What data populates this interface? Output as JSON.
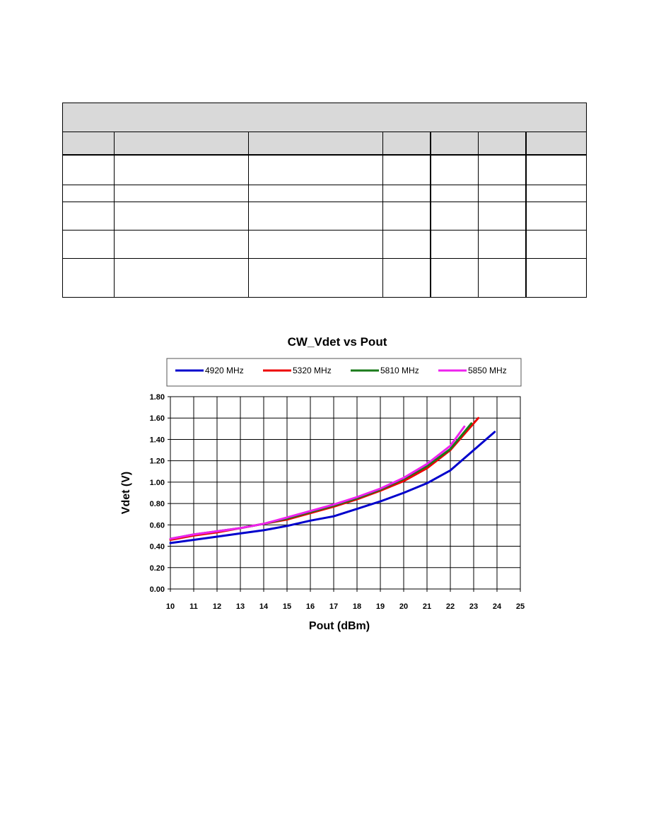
{
  "colors": {
    "table_header_fill": "#d9d9d9",
    "series_4920": "#0000cc",
    "series_5320": "#ee0000",
    "series_5810": "#1a7a1a",
    "series_5850": "#ee22ee"
  },
  "chart_data": {
    "type": "line",
    "title": "CW_Vdet vs Pout",
    "xlabel": "Pout (dBm)",
    "ylabel": "Vdet (V)",
    "xlim": [
      10,
      25
    ],
    "ylim": [
      0.0,
      1.8
    ],
    "x_ticks": [
      "10",
      "11",
      "12",
      "13",
      "14",
      "15",
      "16",
      "17",
      "18",
      "19",
      "20",
      "21",
      "22",
      "23",
      "24",
      "25"
    ],
    "y_ticks": [
      "0.00",
      "0.20",
      "0.40",
      "0.60",
      "0.80",
      "1.00",
      "1.20",
      "1.40",
      "1.60",
      "1.80"
    ],
    "grid": true,
    "legend_position": "top",
    "series": [
      {
        "name": "4920 MHz",
        "color_key": "series_4920",
        "x": [
          10,
          11,
          12,
          13,
          14,
          15,
          16,
          17,
          18,
          19,
          20,
          21,
          22,
          23,
          23.9
        ],
        "y": [
          0.43,
          0.46,
          0.49,
          0.52,
          0.55,
          0.59,
          0.64,
          0.68,
          0.75,
          0.82,
          0.9,
          0.99,
          1.11,
          1.3,
          1.47
        ]
      },
      {
        "name": "5320 MHz",
        "color_key": "series_5320",
        "x": [
          10,
          11,
          12,
          13,
          14,
          15,
          16,
          17,
          18,
          19,
          20,
          21,
          22,
          23.2
        ],
        "y": [
          0.46,
          0.5,
          0.53,
          0.57,
          0.61,
          0.65,
          0.71,
          0.77,
          0.84,
          0.92,
          1.01,
          1.13,
          1.3,
          1.6
        ]
      },
      {
        "name": "5810 MHz",
        "color_key": "series_5810",
        "x": [
          10,
          11,
          12,
          13,
          14,
          15,
          16,
          17,
          18,
          19,
          20,
          21,
          22,
          22.9
        ],
        "y": [
          0.47,
          0.51,
          0.54,
          0.57,
          0.61,
          0.66,
          0.72,
          0.78,
          0.85,
          0.93,
          1.03,
          1.15,
          1.31,
          1.55
        ]
      },
      {
        "name": "5850 MHz",
        "color_key": "series_5850",
        "x": [
          10,
          11,
          12,
          13,
          14,
          15,
          16,
          17,
          18,
          19,
          20,
          21,
          22,
          22.6
        ],
        "y": [
          0.47,
          0.51,
          0.54,
          0.57,
          0.61,
          0.67,
          0.73,
          0.79,
          0.86,
          0.94,
          1.04,
          1.17,
          1.34,
          1.52
        ]
      }
    ]
  }
}
